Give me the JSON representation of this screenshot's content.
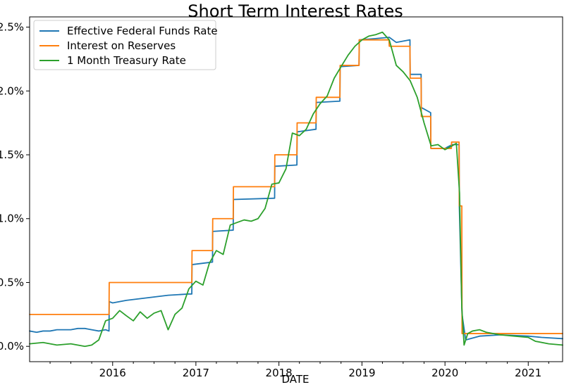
{
  "chart_data": {
    "type": "line",
    "title": "Short Term Interest Rates",
    "xlabel": "DATE",
    "ylabel": "",
    "x_ticks": [
      "2016",
      "2017",
      "2018",
      "2019",
      "2020",
      "2021"
    ],
    "y_ticks": [
      "0.0%",
      "0.5%",
      "1.0%",
      "1.5%",
      "2.0%",
      "2.5%"
    ],
    "xlim": [
      "2015-01-01",
      "2021-06-01"
    ],
    "ylim": [
      -0.0012,
      0.0258
    ],
    "legend_position": "top-left",
    "grid": false,
    "series": [
      {
        "name": "Effective Federal Funds Rate",
        "color": "#1f77b4",
        "points": [
          [
            "2015-01-01",
            0.0012
          ],
          [
            "2015-02-01",
            0.0011
          ],
          [
            "2015-03-01",
            0.0012
          ],
          [
            "2015-04-01",
            0.0012
          ],
          [
            "2015-05-01",
            0.0013
          ],
          [
            "2015-06-01",
            0.0013
          ],
          [
            "2015-07-01",
            0.0013
          ],
          [
            "2015-08-01",
            0.0014
          ],
          [
            "2015-09-01",
            0.0014
          ],
          [
            "2015-10-01",
            0.0013
          ],
          [
            "2015-11-01",
            0.0012
          ],
          [
            "2015-12-01",
            0.0013
          ],
          [
            "2015-12-16",
            0.0012
          ],
          [
            "2015-12-17",
            0.0035
          ],
          [
            "2016-01-01",
            0.0034
          ],
          [
            "2016-03-01",
            0.0036
          ],
          [
            "2016-06-01",
            0.0038
          ],
          [
            "2016-09-01",
            0.004
          ],
          [
            "2016-12-01",
            0.0041
          ],
          [
            "2016-12-14",
            0.0041
          ],
          [
            "2016-12-15",
            0.0064
          ],
          [
            "2017-03-15",
            0.0066
          ],
          [
            "2017-03-16",
            0.009
          ],
          [
            "2017-06-14",
            0.0091
          ],
          [
            "2017-06-15",
            0.0115
          ],
          [
            "2017-12-13",
            0.0116
          ],
          [
            "2017-12-14",
            0.0141
          ],
          [
            "2018-03-21",
            0.0142
          ],
          [
            "2018-03-22",
            0.0168
          ],
          [
            "2018-06-13",
            0.017
          ],
          [
            "2018-06-14",
            0.0191
          ],
          [
            "2018-09-26",
            0.0192
          ],
          [
            "2018-09-27",
            0.0219
          ],
          [
            "2018-12-19",
            0.022
          ],
          [
            "2018-12-20",
            0.024
          ],
          [
            "2019-03-01",
            0.0241
          ],
          [
            "2019-05-01",
            0.0242
          ],
          [
            "2019-06-01",
            0.0238
          ],
          [
            "2019-07-31",
            0.024
          ],
          [
            "2019-08-01",
            0.0213
          ],
          [
            "2019-09-18",
            0.0213
          ],
          [
            "2019-09-19",
            0.0187
          ],
          [
            "2019-10-30",
            0.0183
          ],
          [
            "2019-10-31",
            0.0155
          ],
          [
            "2020-01-01",
            0.0155
          ],
          [
            "2020-02-01",
            0.0158
          ],
          [
            "2020-03-03",
            0.0158
          ],
          [
            "2020-03-04",
            0.011
          ],
          [
            "2020-03-16",
            0.0025
          ],
          [
            "2020-04-01",
            0.0005
          ],
          [
            "2020-06-01",
            0.0008
          ],
          [
            "2020-09-01",
            0.0009
          ],
          [
            "2021-01-01",
            0.0008
          ],
          [
            "2021-03-01",
            0.0007
          ],
          [
            "2021-06-01",
            0.0006
          ]
        ]
      },
      {
        "name": "Interest on Reserves",
        "color": "#ff7f0e",
        "points": [
          [
            "2015-01-01",
            0.0025
          ],
          [
            "2015-12-16",
            0.0025
          ],
          [
            "2015-12-17",
            0.005
          ],
          [
            "2016-12-14",
            0.005
          ],
          [
            "2016-12-15",
            0.0075
          ],
          [
            "2017-03-15",
            0.0075
          ],
          [
            "2017-03-16",
            0.01
          ],
          [
            "2017-06-14",
            0.01
          ],
          [
            "2017-06-15",
            0.0125
          ],
          [
            "2017-12-13",
            0.0125
          ],
          [
            "2017-12-14",
            0.015
          ],
          [
            "2018-03-21",
            0.015
          ],
          [
            "2018-03-22",
            0.0175
          ],
          [
            "2018-06-13",
            0.0175
          ],
          [
            "2018-06-14",
            0.0195
          ],
          [
            "2018-09-26",
            0.0195
          ],
          [
            "2018-09-27",
            0.022
          ],
          [
            "2018-12-19",
            0.022
          ],
          [
            "2018-12-20",
            0.024
          ],
          [
            "2019-04-30",
            0.024
          ],
          [
            "2019-05-01",
            0.0235
          ],
          [
            "2019-07-31",
            0.0235
          ],
          [
            "2019-08-01",
            0.021
          ],
          [
            "2019-09-18",
            0.021
          ],
          [
            "2019-09-19",
            0.018
          ],
          [
            "2019-10-30",
            0.018
          ],
          [
            "2019-10-31",
            0.0155
          ],
          [
            "2020-01-29",
            0.0155
          ],
          [
            "2020-01-30",
            0.016
          ],
          [
            "2020-03-03",
            0.016
          ],
          [
            "2020-03-04",
            0.011
          ],
          [
            "2020-03-15",
            0.011
          ],
          [
            "2020-03-16",
            0.001
          ],
          [
            "2021-06-01",
            0.001
          ]
        ]
      },
      {
        "name": "1 Month Treasury Rate",
        "color": "#2ca02c",
        "points": [
          [
            "2015-01-01",
            0.0002
          ],
          [
            "2015-03-01",
            0.0003
          ],
          [
            "2015-05-01",
            0.0001
          ],
          [
            "2015-07-01",
            0.0002
          ],
          [
            "2015-09-01",
            0.0
          ],
          [
            "2015-10-01",
            0.0001
          ],
          [
            "2015-11-01",
            0.0005
          ],
          [
            "2015-12-01",
            0.002
          ],
          [
            "2016-01-01",
            0.0022
          ],
          [
            "2016-02-01",
            0.0028
          ],
          [
            "2016-03-01",
            0.0024
          ],
          [
            "2016-04-01",
            0.002
          ],
          [
            "2016-05-01",
            0.0027
          ],
          [
            "2016-06-01",
            0.0022
          ],
          [
            "2016-07-01",
            0.0026
          ],
          [
            "2016-08-01",
            0.0028
          ],
          [
            "2016-09-01",
            0.0013
          ],
          [
            "2016-10-01",
            0.0025
          ],
          [
            "2016-11-01",
            0.003
          ],
          [
            "2016-12-01",
            0.0045
          ],
          [
            "2017-01-01",
            0.0051
          ],
          [
            "2017-02-01",
            0.0048
          ],
          [
            "2017-03-01",
            0.0065
          ],
          [
            "2017-04-01",
            0.0075
          ],
          [
            "2017-05-01",
            0.0072
          ],
          [
            "2017-06-01",
            0.0095
          ],
          [
            "2017-07-01",
            0.0097
          ],
          [
            "2017-08-01",
            0.0099
          ],
          [
            "2017-09-01",
            0.0098
          ],
          [
            "2017-10-01",
            0.01
          ],
          [
            "2017-11-01",
            0.0108
          ],
          [
            "2017-12-01",
            0.0127
          ],
          [
            "2018-01-01",
            0.0128
          ],
          [
            "2018-02-01",
            0.0139
          ],
          [
            "2018-03-01",
            0.0167
          ],
          [
            "2018-04-01",
            0.0165
          ],
          [
            "2018-05-01",
            0.017
          ],
          [
            "2018-06-01",
            0.0182
          ],
          [
            "2018-07-01",
            0.019
          ],
          [
            "2018-08-01",
            0.0196
          ],
          [
            "2018-09-01",
            0.021
          ],
          [
            "2018-10-01",
            0.0219
          ],
          [
            "2018-11-01",
            0.0228
          ],
          [
            "2018-12-01",
            0.0235
          ],
          [
            "2019-01-01",
            0.024
          ],
          [
            "2019-02-01",
            0.0243
          ],
          [
            "2019-03-01",
            0.0244
          ],
          [
            "2019-04-01",
            0.0246
          ],
          [
            "2019-05-01",
            0.024
          ],
          [
            "2019-06-01",
            0.022
          ],
          [
            "2019-07-01",
            0.0215
          ],
          [
            "2019-08-01",
            0.0208
          ],
          [
            "2019-09-01",
            0.0195
          ],
          [
            "2019-10-01",
            0.0175
          ],
          [
            "2019-11-01",
            0.0157
          ],
          [
            "2019-12-01",
            0.0158
          ],
          [
            "2020-01-01",
            0.0154
          ],
          [
            "2020-02-01",
            0.0157
          ],
          [
            "2020-02-20",
            0.0159
          ],
          [
            "2020-03-05",
            0.012
          ],
          [
            "2020-03-15",
            0.003
          ],
          [
            "2020-03-25",
            0.0001
          ],
          [
            "2020-04-10",
            0.001
          ],
          [
            "2020-05-01",
            0.0012
          ],
          [
            "2020-06-01",
            0.0013
          ],
          [
            "2020-07-01",
            0.0011
          ],
          [
            "2020-09-01",
            0.0009
          ],
          [
            "2020-11-01",
            0.0008
          ],
          [
            "2021-01-01",
            0.0007
          ],
          [
            "2021-02-01",
            0.0004
          ],
          [
            "2021-04-01",
            0.0002
          ],
          [
            "2021-06-01",
            0.0001
          ]
        ]
      }
    ]
  }
}
